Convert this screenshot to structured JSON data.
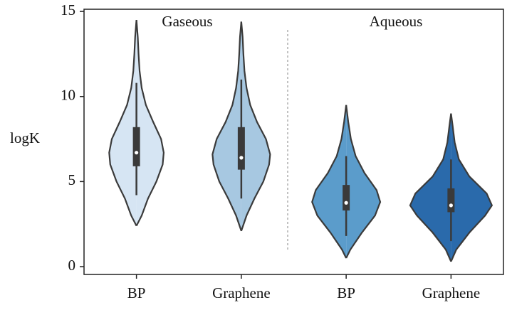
{
  "chart_data": {
    "type": "violin",
    "ylabel": "logK",
    "categories": [
      "BP",
      "Graphene",
      "BP",
      "Graphene"
    ],
    "annotations": [
      "Gaseous",
      "Aqueous"
    ],
    "ylim": [
      -0.46,
      15.13
    ],
    "yticks": [
      0,
      5,
      10,
      15
    ],
    "violins": [
      {
        "color": "#d6e5f3",
        "whisker_low": 4.2,
        "q1": 5.9,
        "median": 6.7,
        "q3": 8.2,
        "whisker_high": 10.8,
        "kde_y": [
          2.4,
          3,
          4,
          5,
          6,
          6.7,
          7.5,
          8.5,
          9.5,
          10.5,
          11.5,
          12.5,
          13.5,
          14.5
        ],
        "kde_width": [
          0,
          0.1,
          0.22,
          0.38,
          0.5,
          0.52,
          0.47,
          0.32,
          0.18,
          0.1,
          0.06,
          0.04,
          0.025,
          0
        ]
      },
      {
        "color": "#a7c8e1",
        "whisker_low": 4.0,
        "q1": 5.7,
        "median": 6.4,
        "q3": 8.2,
        "whisker_high": 11.0,
        "kde_y": [
          2.1,
          3,
          4,
          5,
          6,
          6.6,
          7.5,
          8.5,
          9.5,
          10.5,
          11.5,
          12.5,
          13.5,
          14.4
        ],
        "kde_width": [
          0,
          0.1,
          0.25,
          0.42,
          0.53,
          0.55,
          0.47,
          0.3,
          0.17,
          0.1,
          0.06,
          0.04,
          0.025,
          0
        ]
      },
      {
        "color": "#5b9ccb",
        "whisker_low": 1.8,
        "q1": 3.3,
        "median": 3.75,
        "q3": 4.8,
        "whisker_high": 6.5,
        "kde_y": [
          0.5,
          1,
          2,
          3,
          3.8,
          4.5,
          5.5,
          6.5,
          7.5,
          8.5,
          9.5
        ],
        "kde_width": [
          0,
          0.08,
          0.3,
          0.55,
          0.65,
          0.58,
          0.35,
          0.18,
          0.09,
          0.04,
          0
        ]
      },
      {
        "color": "#2a6aab",
        "whisker_low": 1.5,
        "q1": 3.2,
        "median": 3.6,
        "q3": 4.6,
        "whisker_high": 6.3,
        "kde_y": [
          0.3,
          1,
          2,
          3,
          3.6,
          4.3,
          5.3,
          6.3,
          7.3,
          8.3,
          9.0
        ],
        "kde_width": [
          0,
          0.1,
          0.35,
          0.65,
          0.78,
          0.68,
          0.35,
          0.15,
          0.07,
          0.03,
          0
        ]
      }
    ]
  }
}
